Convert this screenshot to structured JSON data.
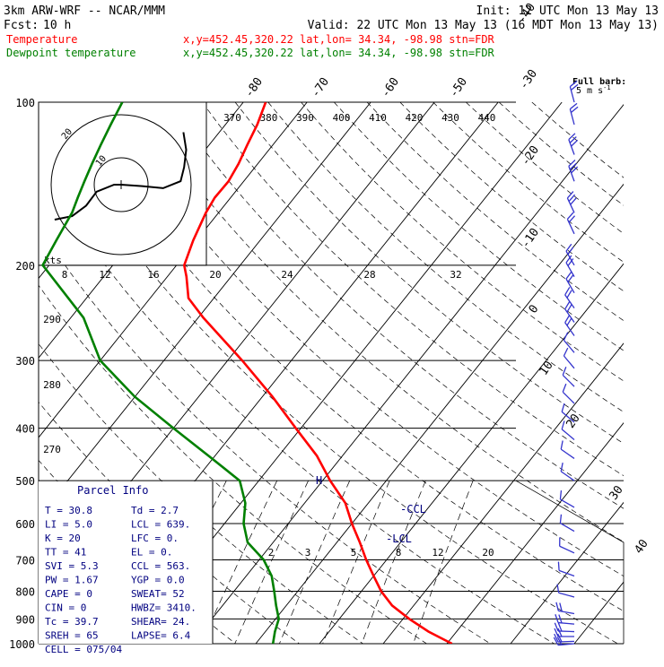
{
  "header": {
    "model": "3km ARW-WRF -- NCAR/MMM",
    "init": "Init: 12 UTC Mon 13 May 13",
    "fcst_label": "Fcst:",
    "fcst_value": "10 h",
    "valid": "Valid: 22 UTC Mon 13 May 13 (16 MDT Mon 13 May 13)",
    "temp_label": "Temperature",
    "dew_label": "Dewpoint temperature",
    "location": "x,y=452.45,320.22    lat,lon= 34.34, -98.98   stn=FDR"
  },
  "colors": {
    "temperature": "#ff0000",
    "dewpoint": "#008000",
    "grid": "#000000",
    "wind": "#3333cc",
    "parcel_text": "#000080"
  },
  "barb_legend": {
    "line1": "Full barb:",
    "line2": "5 m s",
    "exp": "-1"
  },
  "hodograph": {
    "kts_label": "kts",
    "ring_labels": [
      "10",
      "20"
    ],
    "speed_ticks": [
      "8",
      "12",
      "16",
      "20",
      "24",
      "28",
      "32"
    ]
  },
  "parcel_info": {
    "title": "Parcel Info",
    "rows": [
      [
        "T   =  30.8",
        "Td =  2.7"
      ],
      [
        "LI  =   5.0",
        "LCL = 639."
      ],
      [
        "K   =    20",
        "LFC =   0."
      ],
      [
        "TT  =    41",
        "EL  =   0."
      ],
      [
        "SVI =   5.3",
        "CCL = 563."
      ],
      [
        "PW  =  1.67",
        "YGP =  0.0"
      ],
      [
        "CAPE =    0",
        "SWEAT=  52"
      ],
      [
        "CIN  =    0",
        "HWBZ= 3410."
      ],
      [
        "Tc  =  39.7",
        "SHEAR=  24."
      ],
      [
        "SREH =   65",
        "LAPSE=  6.4"
      ],
      [
        "CELL = 075/04",
        ""
      ]
    ]
  },
  "markers": {
    "ccl": "-CCL",
    "lcl": "-LCL",
    "h": "H"
  },
  "chart_data": {
    "type": "line",
    "pressure_levels": [
      "100",
      "200",
      "300",
      "400",
      "500",
      "600",
      "700",
      "800",
      "900",
      "1000"
    ],
    "pressure_values": [
      100,
      200,
      300,
      400,
      500,
      600,
      700,
      800,
      900,
      1000
    ],
    "isotherm_labels": [
      "40",
      "30",
      "20",
      "10",
      "0",
      "-10",
      "-20",
      "-30",
      "-40",
      "-50",
      "-60",
      "-70",
      "-80"
    ],
    "theta_labels": [
      "370",
      "380",
      "390",
      "400",
      "410",
      "420",
      "430",
      "440"
    ],
    "theta_left_labels": [
      "290",
      "280",
      "270"
    ],
    "mixing_ratio_labels": [
      "2",
      "3",
      "5",
      "8",
      "12",
      "20"
    ],
    "series": [
      {
        "name": "Temperature",
        "pressure": [
          1000,
          950,
          900,
          850,
          800,
          750,
          700,
          650,
          600,
          550,
          500,
          450,
          400,
          350,
          300,
          250,
          230,
          210,
          200,
          180,
          160,
          150,
          140,
          130,
          120,
          110,
          100
        ],
        "temperature": [
          30.8,
          25.6,
          21.0,
          16.6,
          13.1,
          10.0,
          6.8,
          3.6,
          0.0,
          -3.6,
          -8.8,
          -14.0,
          -20.8,
          -28.4,
          -37.7,
          -49.2,
          -54.0,
          -57.0,
          -58.8,
          -60.5,
          -62.0,
          -62.5,
          -62.4,
          -63.0,
          -64.0,
          -65.0,
          -66.5
        ]
      },
      {
        "name": "Dewpoint temperature",
        "pressure": [
          1000,
          950,
          900,
          850,
          800,
          750,
          700,
          650,
          600,
          550,
          500,
          450,
          400,
          350,
          300,
          250,
          200,
          180,
          160,
          150,
          140,
          130,
          120,
          110,
          100
        ],
        "dewpoint": [
          2.7,
          1.5,
          0.5,
          -1.6,
          -3.7,
          -6.0,
          -9.3,
          -14.0,
          -17.0,
          -19.3,
          -23.0,
          -31.0,
          -40.0,
          -50.0,
          -60.0,
          -68.0,
          -81.0,
          -82.0,
          -83.0,
          -84.0,
          -85.0,
          -86.0,
          -87.0,
          -88.0,
          -89.0
        ]
      }
    ],
    "hodograph": [
      {
        "u": -9.5,
        "v": -5.0
      },
      {
        "u": -7.0,
        "v": -4.5
      },
      {
        "u": -5.0,
        "v": -3.0
      },
      {
        "u": -3.5,
        "v": -1.0
      },
      {
        "u": -1.0,
        "v": 0.0
      },
      {
        "u": 0.0,
        "v": 0.0
      },
      {
        "u": 3.0,
        "v": -0.2
      },
      {
        "u": 6.0,
        "v": -0.5
      },
      {
        "u": 8.5,
        "v": 0.5
      },
      {
        "u": 9.0,
        "v": 2.5
      },
      {
        "u": 9.3,
        "v": 5.0
      },
      {
        "u": 8.9,
        "v": 7.5
      }
    ],
    "wind_barbs": [
      {
        "p": 100,
        "rot": -15,
        "barbs": 2
      },
      {
        "p": 110,
        "rot": -15,
        "barbs": 2
      },
      {
        "p": 125,
        "rot": -20,
        "barbs": 3
      },
      {
        "p": 140,
        "rot": -20,
        "barbs": 3
      },
      {
        "p": 160,
        "rot": -25,
        "barbs": 3
      },
      {
        "p": 175,
        "rot": -25,
        "barbs": 2
      },
      {
        "p": 200,
        "rot": -30,
        "barbs": 2
      },
      {
        "p": 210,
        "rot": -30,
        "barbs": 2
      },
      {
        "p": 225,
        "rot": -30,
        "barbs": 2
      },
      {
        "p": 240,
        "rot": -35,
        "barbs": 2
      },
      {
        "p": 255,
        "rot": -35,
        "barbs": 2
      },
      {
        "p": 270,
        "rot": -35,
        "barbs": 2
      },
      {
        "p": 290,
        "rot": -40,
        "barbs": 1
      },
      {
        "p": 310,
        "rot": -40,
        "barbs": 1
      },
      {
        "p": 335,
        "rot": -45,
        "barbs": 1
      },
      {
        "p": 360,
        "rot": -45,
        "barbs": 1
      },
      {
        "p": 390,
        "rot": -50,
        "barbs": 1
      },
      {
        "p": 420,
        "rot": -50,
        "barbs": 1
      },
      {
        "p": 455,
        "rot": -55,
        "barbs": 1
      },
      {
        "p": 500,
        "rot": -55,
        "barbs": 1
      },
      {
        "p": 560,
        "rot": -60,
        "barbs": 1
      },
      {
        "p": 620,
        "rot": -60,
        "barbs": 1
      },
      {
        "p": 680,
        "rot": -65,
        "barbs": 1
      },
      {
        "p": 750,
        "rot": -70,
        "barbs": 1
      },
      {
        "p": 820,
        "rot": -75,
        "barbs": 1
      },
      {
        "p": 880,
        "rot": -80,
        "barbs": 2
      },
      {
        "p": 920,
        "rot": -85,
        "barbs": 2
      },
      {
        "p": 950,
        "rot": -88,
        "barbs": 2
      },
      {
        "p": 970,
        "rot": -90,
        "barbs": 2
      },
      {
        "p": 990,
        "rot": -92,
        "barbs": 2
      },
      {
        "p": 1000,
        "rot": -95,
        "barbs": 2
      }
    ]
  }
}
